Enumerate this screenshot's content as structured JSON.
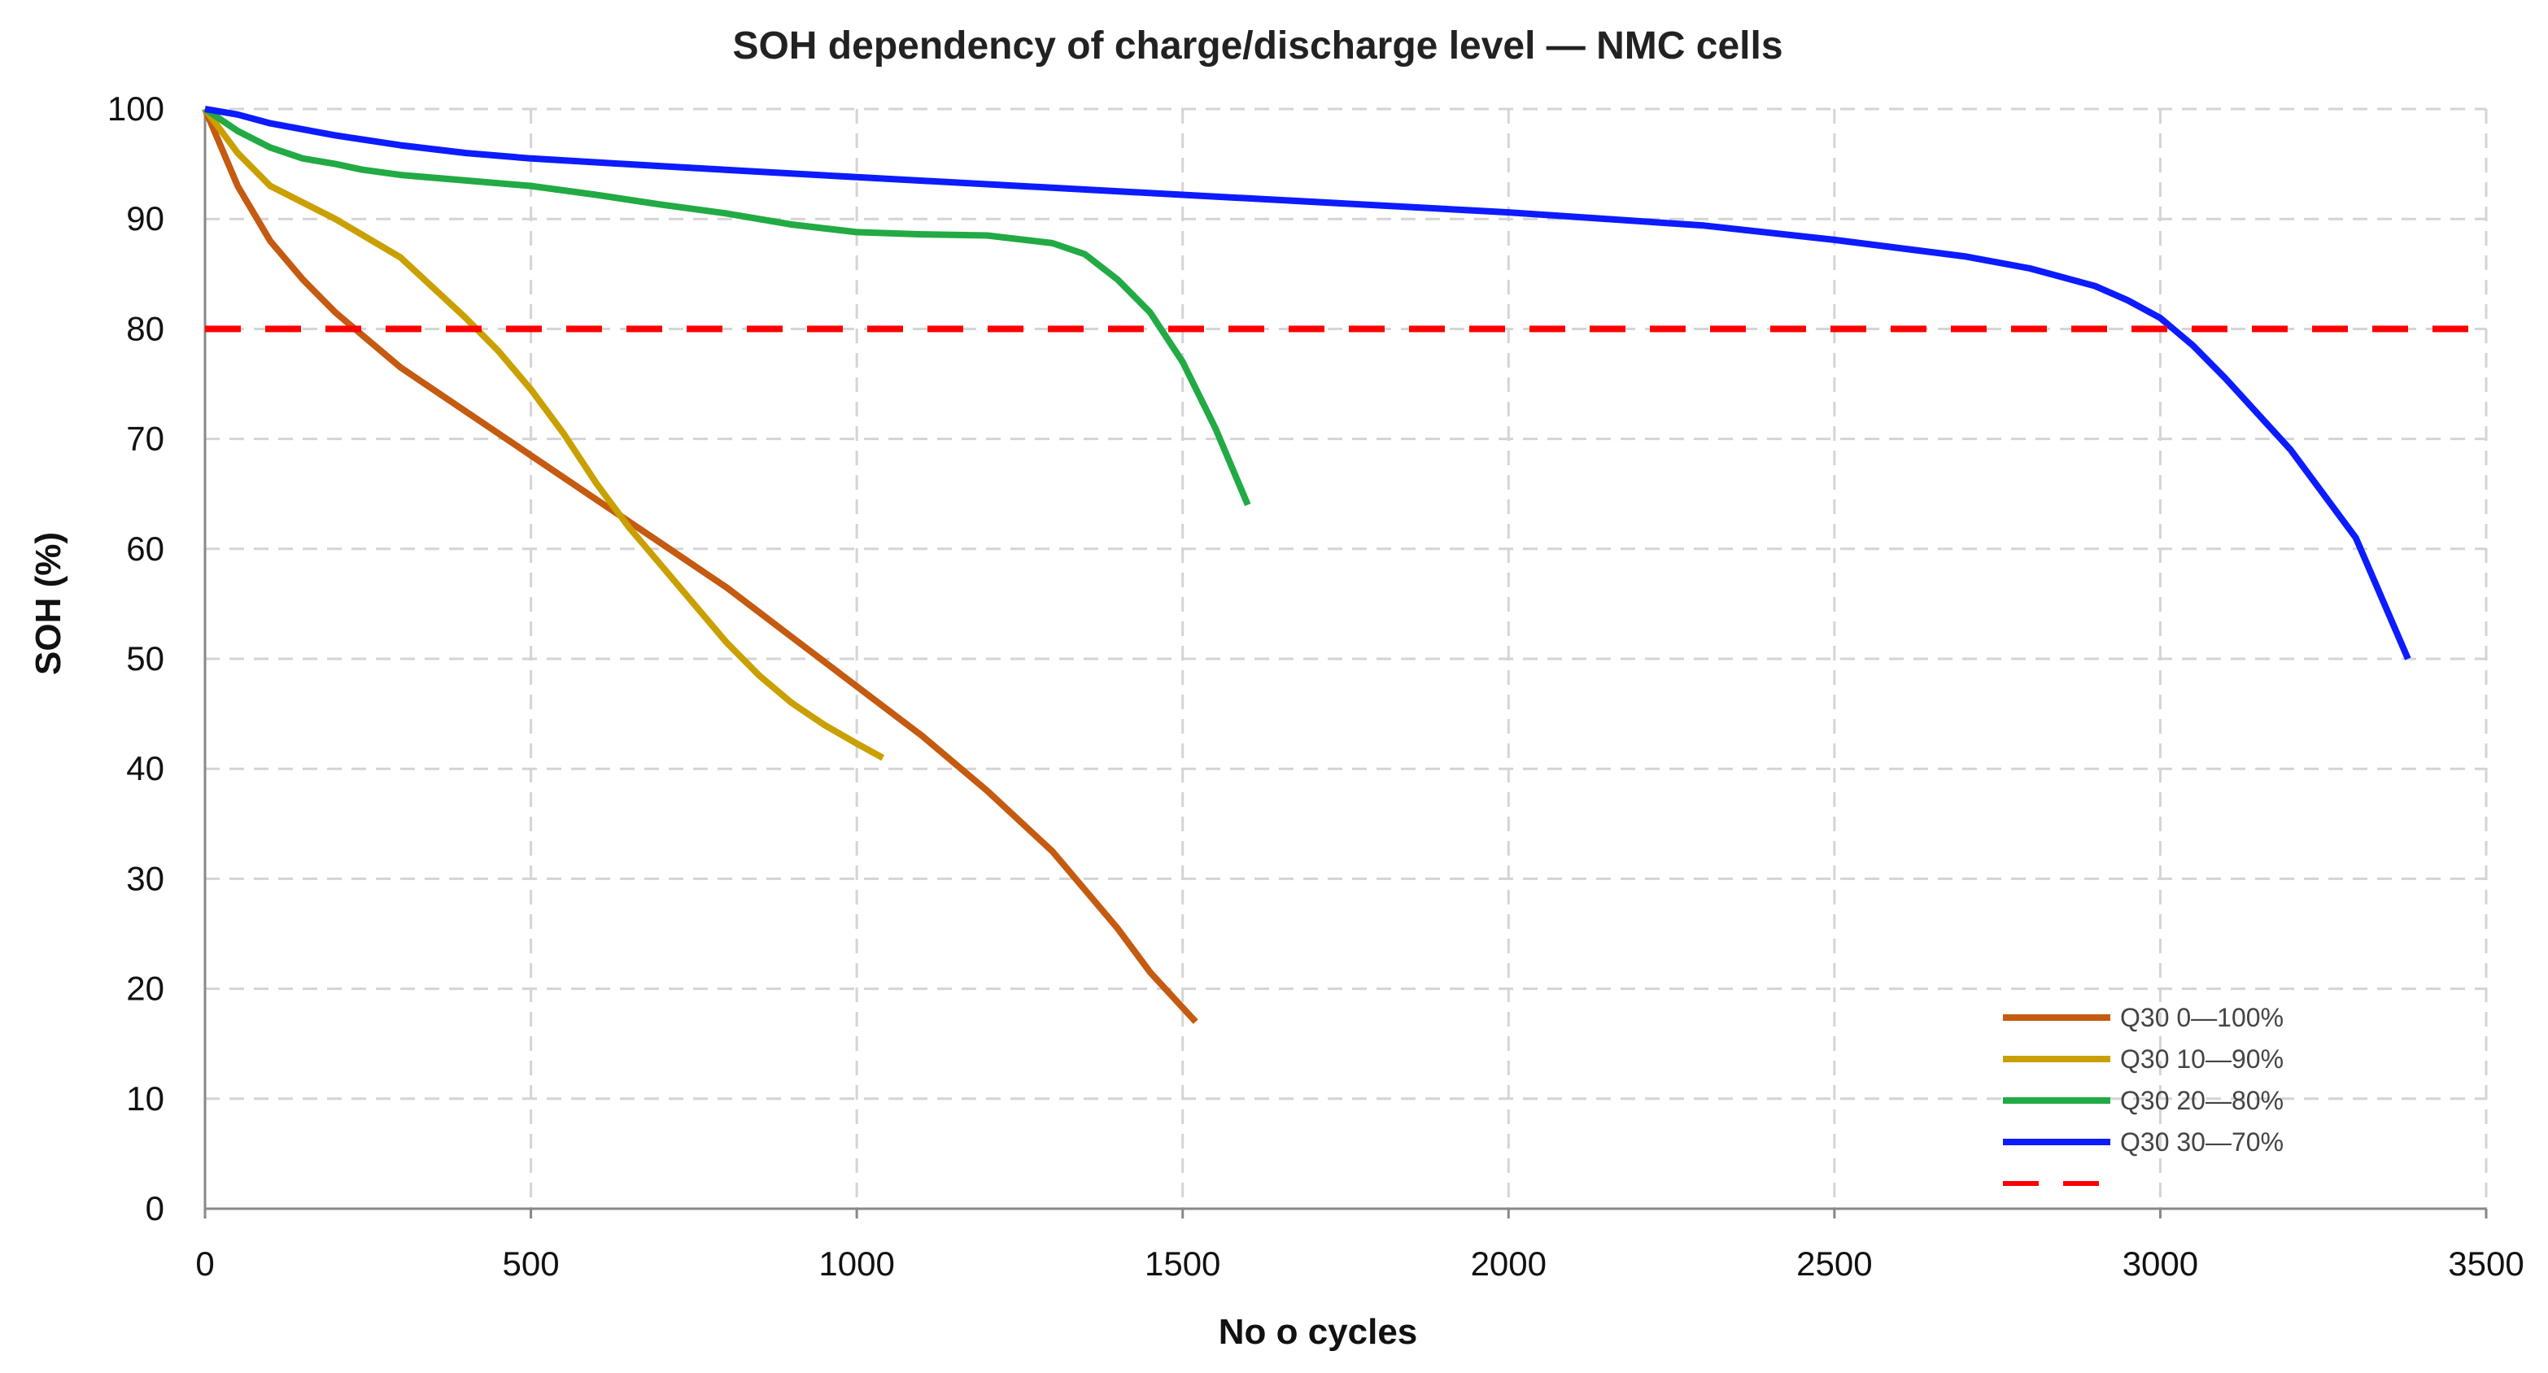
{
  "chart_data": {
    "type": "line",
    "title": "SOH dependency of charge/discharge level — NMC cells",
    "xlabel": "No o cycles",
    "ylabel": "SOH (%)",
    "xlim": [
      0,
      3500
    ],
    "ylim": [
      0,
      100
    ],
    "xticks": [
      0,
      500,
      1000,
      1500,
      2000,
      2500,
      3000,
      3500
    ],
    "yticks": [
      0,
      10,
      20,
      30,
      40,
      50,
      60,
      70,
      80,
      90,
      100
    ],
    "grid": true,
    "legend_position": "bottom-right",
    "series": [
      {
        "name": "Q30 0—100%",
        "color": "#C55A11",
        "dashed": false,
        "points": [
          [
            0,
            100
          ],
          [
            50,
            93
          ],
          [
            100,
            88
          ],
          [
            150,
            84.5
          ],
          [
            200,
            81.5
          ],
          [
            250,
            79
          ],
          [
            300,
            76.5
          ],
          [
            400,
            72.5
          ],
          [
            500,
            68.5
          ],
          [
            600,
            64.5
          ],
          [
            700,
            60.5
          ],
          [
            800,
            56.5
          ],
          [
            900,
            52
          ],
          [
            1000,
            47.5
          ],
          [
            1100,
            43
          ],
          [
            1200,
            38
          ],
          [
            1300,
            32.5
          ],
          [
            1400,
            25.5
          ],
          [
            1450,
            21.5
          ],
          [
            1520,
            17
          ]
        ]
      },
      {
        "name": "Q30 10—90%",
        "color": "#C9A000",
        "dashed": false,
        "points": [
          [
            0,
            100
          ],
          [
            50,
            96
          ],
          [
            100,
            93
          ],
          [
            200,
            90
          ],
          [
            300,
            86.5
          ],
          [
            400,
            81
          ],
          [
            450,
            78
          ],
          [
            500,
            74.5
          ],
          [
            550,
            70.5
          ],
          [
            600,
            66
          ],
          [
            650,
            62
          ],
          [
            700,
            58.5
          ],
          [
            750,
            55
          ],
          [
            800,
            51.5
          ],
          [
            850,
            48.5
          ],
          [
            900,
            46
          ],
          [
            950,
            44
          ],
          [
            1000,
            42.3
          ],
          [
            1040,
            41
          ]
        ]
      },
      {
        "name": "Q30 20—80%",
        "color": "#22AA44",
        "dashed": false,
        "points": [
          [
            0,
            100
          ],
          [
            50,
            98
          ],
          [
            100,
            96.5
          ],
          [
            150,
            95.5
          ],
          [
            200,
            95
          ],
          [
            240,
            94.5
          ],
          [
            300,
            94
          ],
          [
            400,
            93.5
          ],
          [
            500,
            93
          ],
          [
            600,
            92.2
          ],
          [
            700,
            91.3
          ],
          [
            800,
            90.5
          ],
          [
            900,
            89.5
          ],
          [
            1000,
            88.8
          ],
          [
            1100,
            88.6
          ],
          [
            1200,
            88.5
          ],
          [
            1300,
            87.8
          ],
          [
            1350,
            86.8
          ],
          [
            1400,
            84.5
          ],
          [
            1450,
            81.5
          ],
          [
            1500,
            77
          ],
          [
            1550,
            71
          ],
          [
            1600,
            64
          ]
        ]
      },
      {
        "name": "Q30 30—70%",
        "color": "#0D1BFF",
        "dashed": false,
        "points": [
          [
            0,
            100
          ],
          [
            50,
            99.5
          ],
          [
            100,
            98.7
          ],
          [
            200,
            97.6
          ],
          [
            300,
            96.7
          ],
          [
            400,
            96
          ],
          [
            500,
            95.5
          ],
          [
            700,
            94.8
          ],
          [
            1000,
            93.8
          ],
          [
            1500,
            92.2
          ],
          [
            2000,
            90.6
          ],
          [
            2300,
            89.4
          ],
          [
            2500,
            88.1
          ],
          [
            2700,
            86.6
          ],
          [
            2800,
            85.5
          ],
          [
            2900,
            83.9
          ],
          [
            2950,
            82.6
          ],
          [
            3000,
            81
          ],
          [
            3050,
            78.5
          ],
          [
            3100,
            75.5
          ],
          [
            3200,
            69
          ],
          [
            3300,
            61
          ],
          [
            3380,
            50
          ]
        ]
      },
      {
        "name": "",
        "color": "#FF0000",
        "dashed": true,
        "points": [
          [
            0,
            80
          ],
          [
            3500,
            80
          ]
        ]
      }
    ]
  }
}
